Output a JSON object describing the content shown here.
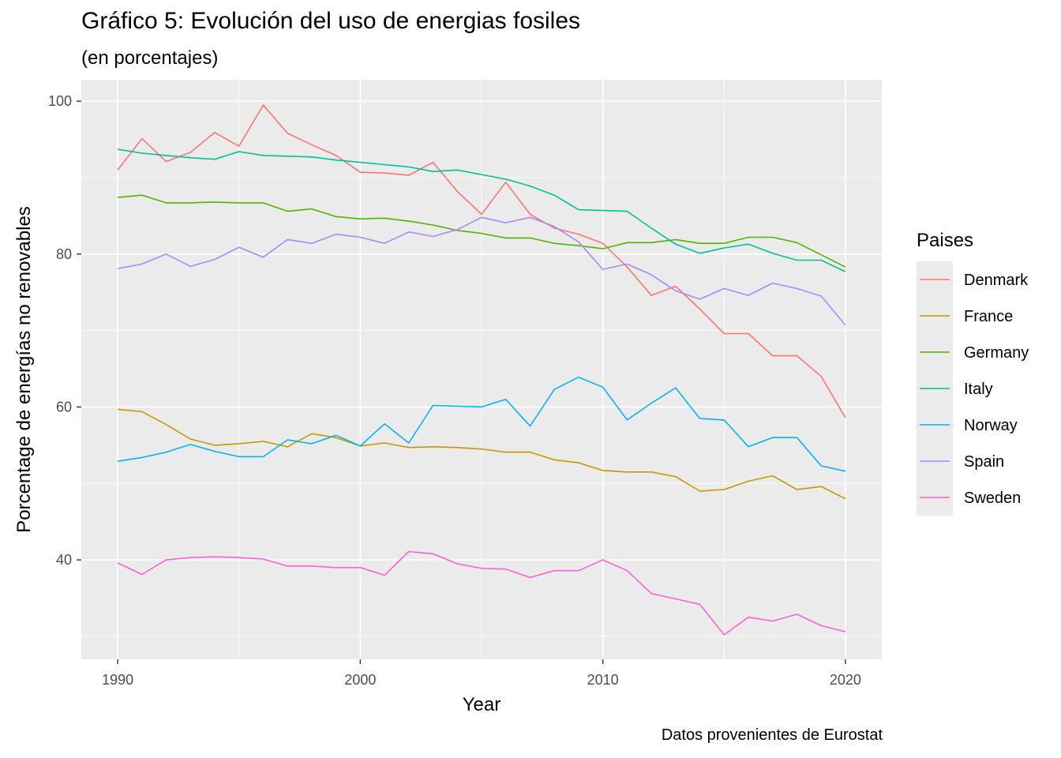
{
  "chart_data": {
    "type": "line",
    "title": "Gráfico 5: Evolución del uso de energias fosiles",
    "subtitle": "(en porcentajes)",
    "caption": "Datos provenientes de Eurostat",
    "xlabel": "Year",
    "ylabel": "Porcentage de energías no renovables",
    "legend_title": "Paises",
    "legend_position": "right",
    "grid": true,
    "xlim": [
      1988.5,
      2021.5
    ],
    "ylim": [
      27.0,
      102.8
    ],
    "x_ticks": [
      1990,
      2000,
      2010,
      2020
    ],
    "y_ticks": [
      40,
      60,
      80,
      100
    ],
    "x": [
      1990,
      1991,
      1992,
      1993,
      1994,
      1995,
      1996,
      1997,
      1998,
      1999,
      2000,
      2001,
      2002,
      2003,
      2004,
      2005,
      2006,
      2007,
      2008,
      2009,
      2010,
      2011,
      2012,
      2013,
      2014,
      2015,
      2016,
      2017,
      2018,
      2019,
      2020
    ],
    "series": [
      {
        "name": "Denmark",
        "color": "#F8766D",
        "values": [
          91.0,
          95.1,
          92.1,
          93.3,
          95.9,
          94.1,
          99.5,
          95.8,
          94.3,
          92.9,
          90.7,
          90.6,
          90.3,
          92.0,
          88.2,
          85.2,
          89.4,
          85.2,
          83.4,
          82.6,
          81.4,
          78.3,
          74.6,
          75.8,
          72.8,
          69.6,
          69.6,
          66.7,
          66.7,
          64.0,
          58.6
        ]
      },
      {
        "name": "France",
        "color": "#C49A00",
        "values": [
          59.7,
          59.4,
          57.7,
          55.8,
          55.0,
          55.2,
          55.5,
          54.8,
          56.5,
          56.0,
          54.9,
          55.3,
          54.7,
          54.8,
          54.7,
          54.5,
          54.1,
          54.1,
          53.1,
          52.7,
          51.7,
          51.5,
          51.5,
          50.9,
          49.0,
          49.2,
          50.3,
          51.0,
          49.2,
          49.6,
          48.0
        ]
      },
      {
        "name": "Germany",
        "color": "#53B400",
        "values": [
          87.4,
          87.7,
          86.7,
          86.7,
          86.8,
          86.7,
          86.7,
          85.6,
          85.9,
          84.9,
          84.6,
          84.7,
          84.3,
          83.8,
          83.1,
          82.7,
          82.1,
          82.1,
          81.4,
          81.1,
          80.7,
          81.5,
          81.5,
          81.9,
          81.4,
          81.4,
          82.2,
          82.2,
          81.5,
          79.9,
          78.3
        ]
      },
      {
        "name": "Italy",
        "color": "#00C094",
        "values": [
          93.7,
          93.2,
          92.9,
          92.6,
          92.4,
          93.4,
          92.9,
          92.8,
          92.7,
          92.3,
          92.0,
          91.7,
          91.4,
          90.8,
          91.0,
          90.4,
          89.8,
          88.9,
          87.7,
          85.8,
          85.7,
          85.6,
          83.4,
          81.3,
          80.1,
          80.8,
          81.3,
          80.1,
          79.2,
          79.2,
          77.7
        ]
      },
      {
        "name": "Norway",
        "color": "#00B6EB",
        "values": [
          52.9,
          53.4,
          54.1,
          55.1,
          54.2,
          53.5,
          53.5,
          55.7,
          55.2,
          56.3,
          54.9,
          57.8,
          55.3,
          60.2,
          60.1,
          60.0,
          61.0,
          57.5,
          62.3,
          63.9,
          62.6,
          58.3,
          60.5,
          62.5,
          58.5,
          58.3,
          54.8,
          56.0,
          56.0,
          52.3,
          51.6
        ]
      },
      {
        "name": "Spain",
        "color": "#A58AFF",
        "values": [
          78.1,
          78.7,
          80.0,
          78.4,
          79.3,
          80.9,
          79.6,
          81.9,
          81.4,
          82.6,
          82.2,
          81.4,
          82.9,
          82.3,
          83.2,
          84.8,
          84.1,
          84.8,
          83.6,
          81.6,
          78.0,
          78.7,
          77.3,
          75.2,
          74.1,
          75.5,
          74.6,
          76.2,
          75.5,
          74.5,
          70.7
        ]
      },
      {
        "name": "Sweden",
        "color": "#FB61D7",
        "values": [
          39.6,
          38.1,
          40.0,
          40.3,
          40.4,
          40.3,
          40.1,
          39.2,
          39.2,
          39.0,
          39.0,
          38.0,
          41.1,
          40.8,
          39.5,
          38.9,
          38.8,
          37.7,
          38.6,
          38.6,
          40.0,
          38.6,
          35.6,
          34.9,
          34.2,
          30.2,
          32.5,
          32.0,
          32.9,
          31.4,
          30.6
        ]
      }
    ]
  }
}
